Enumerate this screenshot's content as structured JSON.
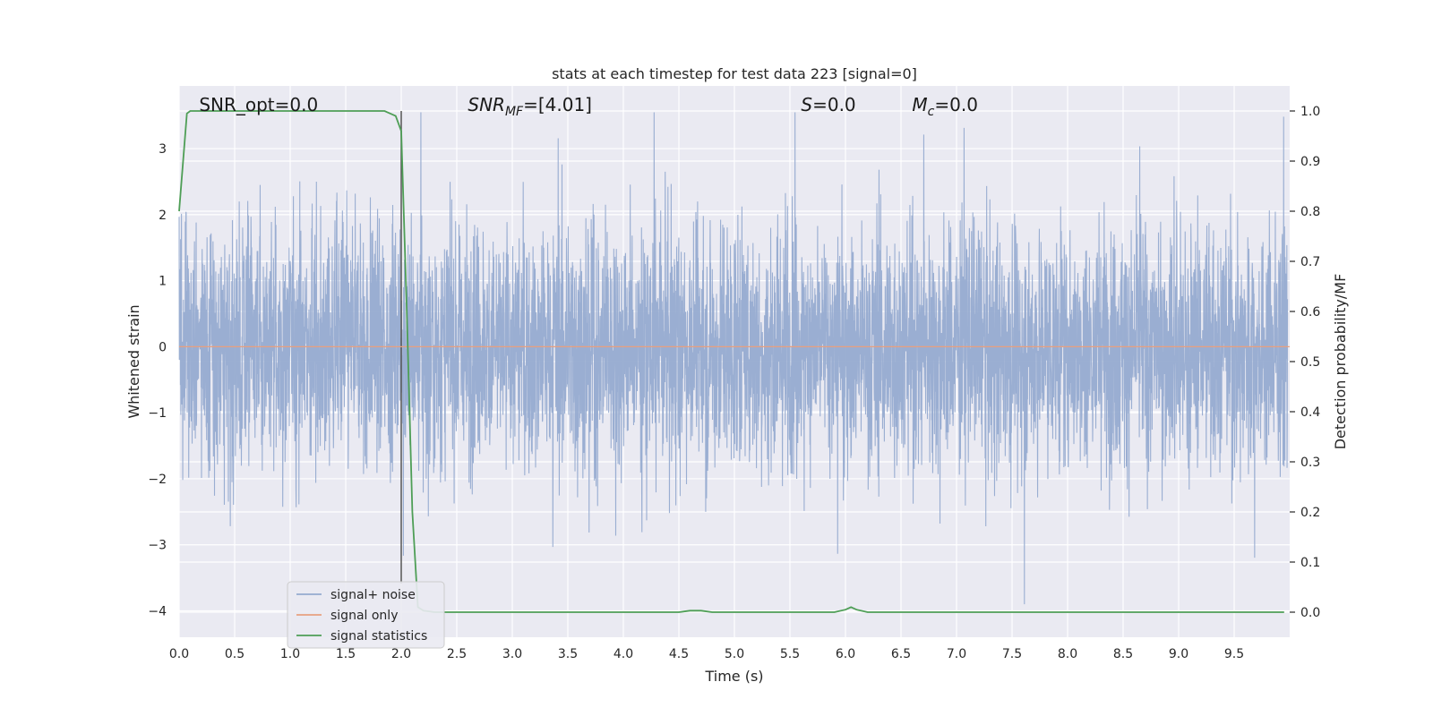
{
  "chart_data": {
    "type": "line",
    "title": "stats at each timestep for test data 223 [signal=0]",
    "xlabel": "Time (s)",
    "ylabel": "Whitened strain",
    "y2label": "Detection probability/MF",
    "xlim": [
      0,
      10
    ],
    "ylim": [
      -4.4,
      3.95
    ],
    "y2lim": [
      -0.05,
      1.05
    ],
    "x_ticks": [
      "0.0",
      "0.5",
      "1.0",
      "1.5",
      "2.0",
      "2.5",
      "3.0",
      "3.5",
      "4.0",
      "4.5",
      "5.0",
      "5.5",
      "6.0",
      "6.5",
      "7.0",
      "7.5",
      "8.0",
      "8.5",
      "9.0",
      "9.5"
    ],
    "x_tick_values": [
      0,
      0.5,
      1,
      1.5,
      2,
      2.5,
      3,
      3.5,
      4,
      4.5,
      5,
      5.5,
      6,
      6.5,
      7,
      7.5,
      8,
      8.5,
      9,
      9.5
    ],
    "y_ticks": [
      "−4",
      "−3",
      "−2",
      "−1",
      "0",
      "1",
      "2",
      "3"
    ],
    "y_tick_values": [
      -4,
      -3,
      -2,
      -1,
      0,
      1,
      2,
      3
    ],
    "y2_ticks": [
      "0.0",
      "0.1",
      "0.2",
      "0.3",
      "0.4",
      "0.5",
      "0.6",
      "0.7",
      "0.8",
      "0.9",
      "1.0"
    ],
    "y2_tick_values": [
      0,
      0.1,
      0.2,
      0.3,
      0.4,
      0.5,
      0.6,
      0.7,
      0.8,
      0.9,
      1.0
    ],
    "grid": true,
    "legend_position": "bottom-left",
    "vertical_marker_x": 2.0,
    "annotations": [
      {
        "x": 0.18,
        "base": "SNR_opt=0.0",
        "sub": "",
        "rest": ""
      },
      {
        "x": 2.6,
        "base": "SNR",
        "sub": "MF",
        "rest": "=[4.01]"
      },
      {
        "x": 5.6,
        "base": "S",
        "sub": "",
        "rest": "=0.0"
      },
      {
        "x": 6.6,
        "base": "M",
        "sub": "c",
        "rest": "=0.0"
      }
    ],
    "series": [
      {
        "name": "signal+ noise",
        "color": "#96abd0",
        "axis": "left",
        "kind": "noise",
        "amplitude_envelope": 2.0
      },
      {
        "name": "signal only",
        "color": "#e8a07f",
        "axis": "left",
        "x": [
          0,
          10
        ],
        "y": [
          0,
          0
        ]
      },
      {
        "name": "signal statistics",
        "color": "#4e9e56",
        "axis": "right",
        "x": [
          0,
          0.07,
          0.1,
          0.5,
          1.0,
          1.5,
          1.85,
          1.95,
          2.0,
          2.05,
          2.1,
          2.15,
          2.2,
          2.3,
          4.5,
          4.6,
          4.7,
          4.8,
          5.9,
          6.0,
          6.05,
          6.1,
          6.2,
          9.95
        ],
        "y": [
          0.8,
          0.995,
          1.0,
          1.0,
          1.0,
          1.0,
          1.0,
          0.99,
          0.96,
          0.6,
          0.2,
          0.01,
          0.003,
          0.0,
          0.0,
          0.003,
          0.003,
          0.0,
          0.0,
          0.005,
          0.01,
          0.005,
          0.0,
          0.0
        ]
      }
    ]
  }
}
